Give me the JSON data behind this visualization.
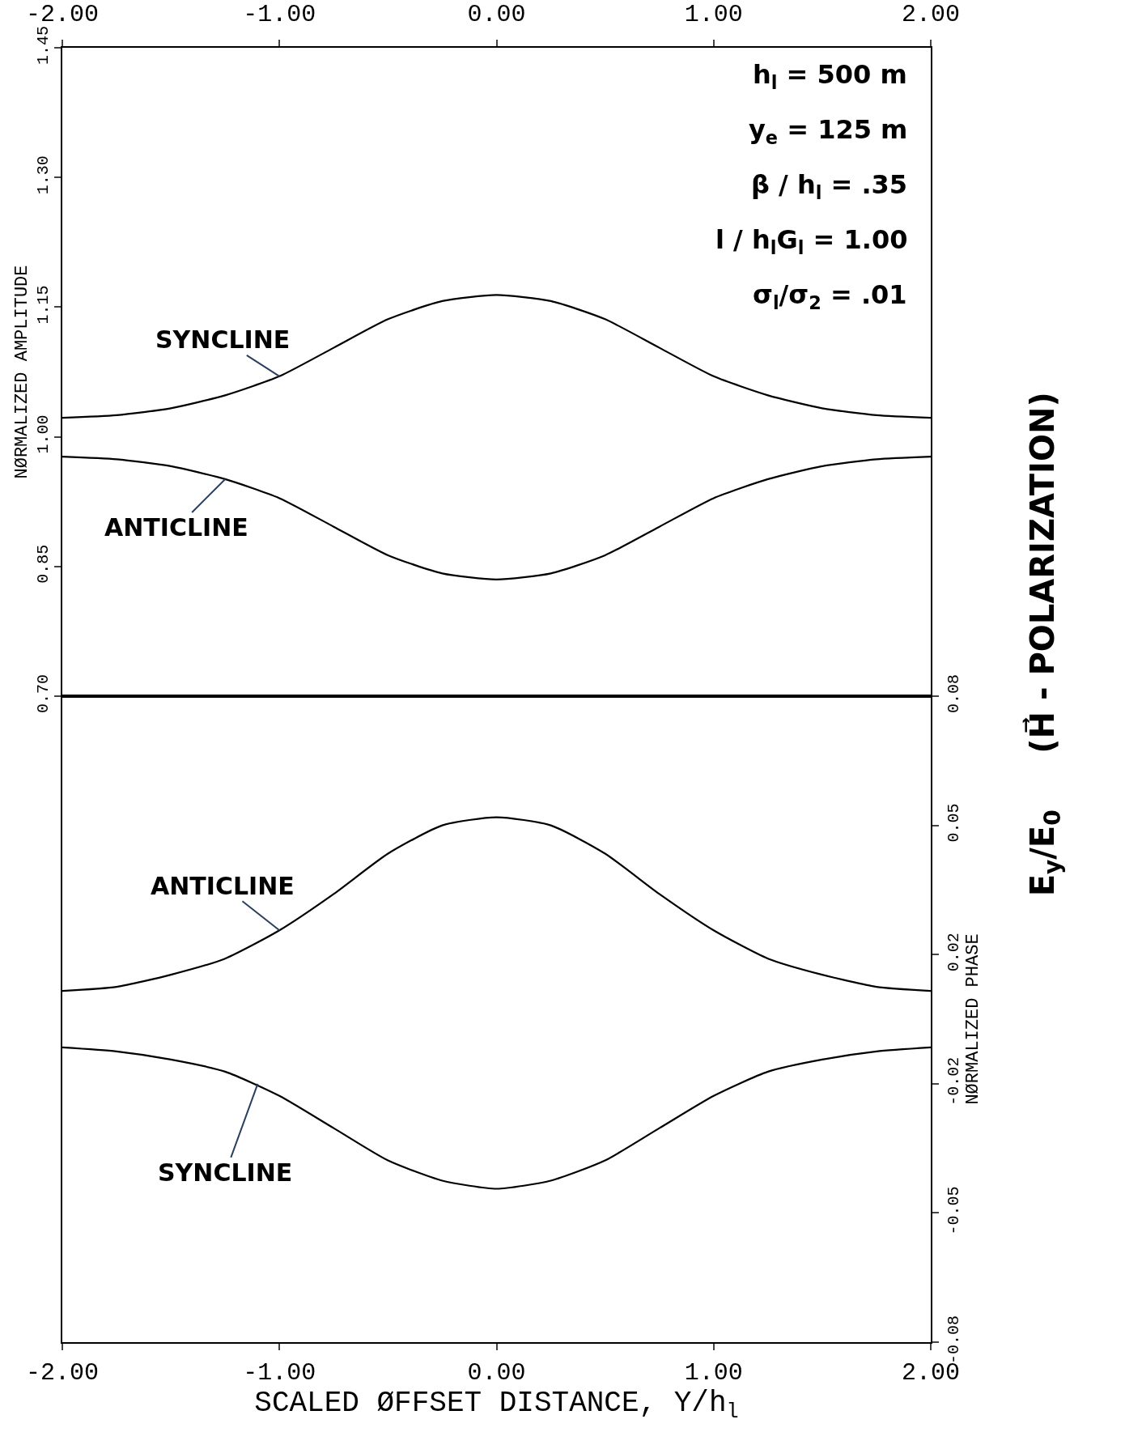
{
  "chart_data": [
    {
      "type": "line",
      "title": "E$_{y}$/E$_{0}$     (H⃗ - POLARIZATION)",
      "ylabel": "NØRMALIZED AMPLITUDE",
      "x": [
        -2,
        -1.75,
        -1.5,
        -1.25,
        -1,
        -0.75,
        -0.5,
        -0.25,
        0,
        0.25,
        0.5,
        0.75,
        1,
        1.25,
        1.5,
        1.75,
        2
      ],
      "series": [
        {
          "color": "#000000",
          "values": [
            1.022,
            1.025,
            1.033,
            1.048,
            1.07,
            1.103,
            1.136,
            1.157,
            1.164,
            1.157,
            1.136,
            1.103,
            1.07,
            1.048,
            1.033,
            1.025,
            1.022
          ]
        },
        {
          "color": "#000000",
          "values": [
            0.977,
            0.974,
            0.966,
            0.951,
            0.929,
            0.896,
            0.863,
            0.842,
            0.835,
            0.842,
            0.863,
            0.896,
            0.929,
            0.951,
            0.966,
            0.974,
            0.977
          ]
        }
      ],
      "xlim": [
        -2,
        2
      ],
      "xticks": [
        {
          "value": -2,
          "label": "-2.00"
        },
        {
          "value": -1,
          "label": "-1.00"
        },
        {
          "value": 0,
          "label": "0.00"
        },
        {
          "value": 1,
          "label": "1.00"
        },
        {
          "value": 2,
          "label": "2.00"
        }
      ],
      "ylim": [
        0.7,
        1.45
      ],
      "yticks": [
        {
          "value": 0.7,
          "label": "0.70"
        },
        {
          "value": 0.85,
          "label": "0.85"
        },
        {
          "value": 1.0,
          "label": "1.00"
        },
        {
          "value": 1.15,
          "label": "1.15"
        },
        {
          "value": 1.3,
          "label": "1.30"
        },
        {
          "value": 1.45,
          "label": "1.45"
        }
      ],
      "grid": false,
      "marker": "none",
      "line_style": "solid",
      "annotations": [
        {
          "text": "SYNCLINE",
          "x": -1,
          "y": 1.07
        },
        {
          "text": "ANTICLINE",
          "x": -1.25,
          "y": 0.951
        },
        "h$_{l}$ = 500 m",
        "y$_{e}$ = 125 m",
        "β / h$_{l}$ = .35",
        "l / h$_{l}$G$_{l}$ = 1.00",
        "σ$_{l}$/σ$_{2}$ = .01"
      ]
    },
    {
      "type": "line",
      "ylabel": "NØRMALIZED PHASE",
      "xlabel": "SCALED ØFFSET DISTANCE, Y/h$_{l}$",
      "x": [
        -2,
        -1.75,
        -1.5,
        -1.25,
        -1,
        -0.75,
        -0.5,
        -0.25,
        0,
        0.25,
        0.5,
        0.75,
        1,
        1.25,
        1.5,
        1.75,
        2
      ],
      "series": [
        {
          "color": "#000000",
          "values": [
            0.007,
            0.008,
            0.011,
            0.015,
            0.022,
            0.031,
            0.041,
            0.048,
            0.05,
            0.048,
            0.041,
            0.031,
            0.022,
            0.015,
            0.011,
            0.008,
            0.007
          ]
        },
        {
          "color": "#000000",
          "values": [
            -0.007,
            -0.008,
            -0.01,
            -0.013,
            -0.019,
            -0.027,
            -0.035,
            -0.04,
            -0.042,
            -0.04,
            -0.035,
            -0.027,
            -0.019,
            -0.013,
            -0.01,
            -0.008,
            -0.007
          ]
        }
      ],
      "xlim": [
        -2,
        2
      ],
      "xticks": [
        {
          "value": -2,
          "label": "-2.00"
        },
        {
          "value": -1,
          "label": "-1.00"
        },
        {
          "value": 0,
          "label": "0.00"
        },
        {
          "value": 1,
          "label": "1.00"
        },
        {
          "value": 2,
          "label": "2.00"
        }
      ],
      "ylim": [
        -0.08,
        0.08
      ],
      "yticks": [
        {
          "value": -0.08,
          "label": "-0.08"
        },
        {
          "value": -0.048,
          "label": "-0.05"
        },
        {
          "value": -0.016,
          "label": "-0.02"
        },
        {
          "value": 0.016,
          "label": "0.02"
        },
        {
          "value": 0.048,
          "label": "0.05"
        },
        {
          "value": 0.08,
          "label": "0.08"
        }
      ],
      "grid": false,
      "marker": "none",
      "line_style": "solid",
      "annotations": [
        {
          "text": "ANTICLINE",
          "x": -1,
          "y": 0.022
        },
        {
          "text": "SYNCLINE",
          "x": -1.1,
          "y": -0.016
        }
      ]
    }
  ]
}
